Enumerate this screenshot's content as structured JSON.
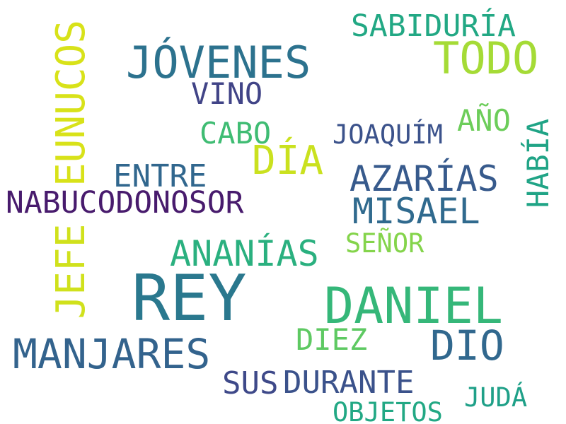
{
  "words": [
    {
      "text": "REY",
      "color": "#2a788e"
    },
    {
      "text": "DANIEL",
      "color": "#35b779"
    },
    {
      "text": "JÓVENES",
      "color": "#2c728e"
    },
    {
      "text": "MANJARES",
      "color": "#33638d"
    },
    {
      "text": "TODO",
      "color": "#a5db36"
    },
    {
      "text": "EUNUCOS",
      "color": "#d8e219"
    },
    {
      "text": "JEFE",
      "color": "#d0e11c"
    },
    {
      "text": "NABUCODONOSOR",
      "color": "#481b6d"
    },
    {
      "text": "AZARÍAS",
      "color": "#375a8c"
    },
    {
      "text": "MISAEL",
      "color": "#306a8e"
    },
    {
      "text": "DIO",
      "color": "#31688e"
    },
    {
      "text": "DÍA",
      "color": "#cae11f"
    },
    {
      "text": "SABIDURÍA",
      "color": "#22a884"
    },
    {
      "text": "ANANÍAS",
      "color": "#2ab07f"
    },
    {
      "text": "SUS",
      "color": "#3e4989"
    },
    {
      "text": "DURANTE",
      "color": "#3b528b"
    },
    {
      "text": "ENTRE",
      "color": "#31678e"
    },
    {
      "text": "VINO",
      "color": "#414487"
    },
    {
      "text": "CABO",
      "color": "#3fbc73"
    },
    {
      "text": "HABÍA",
      "color": "#20a486"
    },
    {
      "text": "AÑO",
      "color": "#6ccd5a"
    },
    {
      "text": "JOAQUÍM",
      "color": "#3b528b"
    },
    {
      "text": "DIEZ",
      "color": "#5ec962"
    },
    {
      "text": "SEÑOR",
      "color": "#84d44b"
    },
    {
      "text": "JUDÁ",
      "color": "#1fa088"
    },
    {
      "text": "OBJETOS",
      "color": "#22a884"
    }
  ]
}
